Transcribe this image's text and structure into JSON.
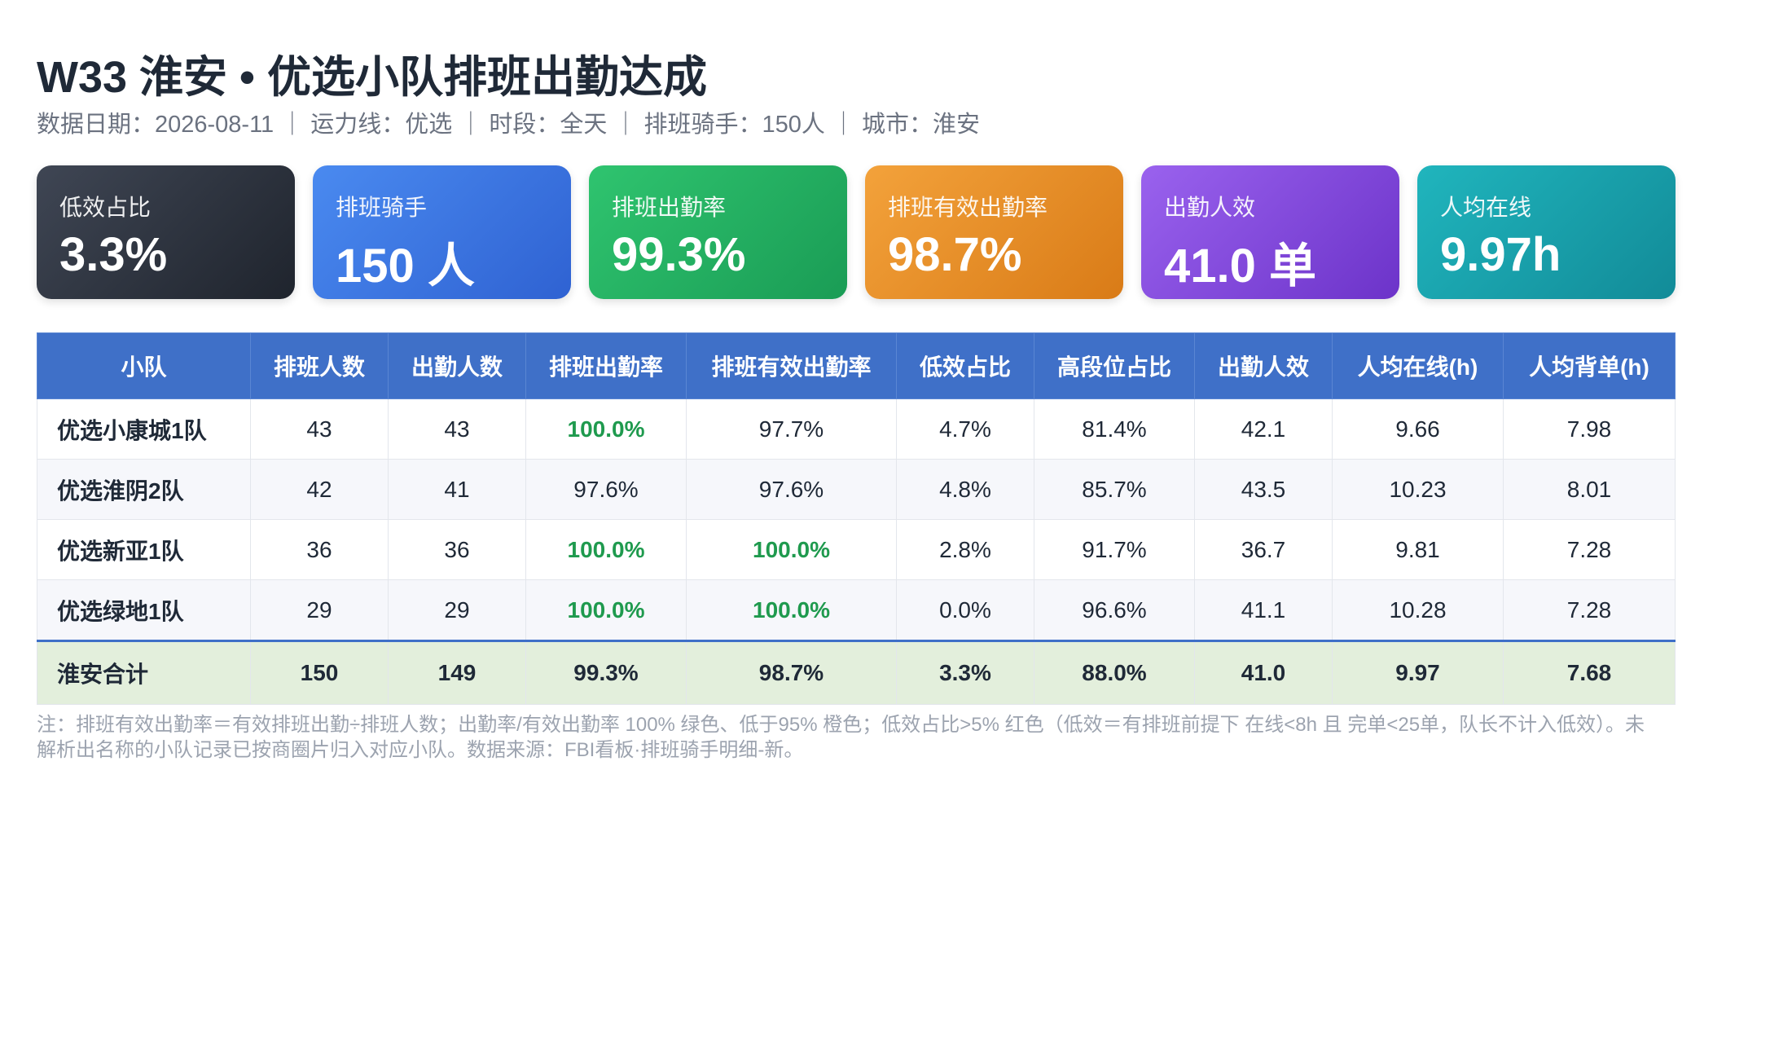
{
  "header": {
    "title": "W33 淮安 • 优选小队排班出勤达成",
    "subtitle": "数据日期：2026-08-11 ｜ 运力线：优选 ｜ 时段：全天 ｜ 排班骑手：150人 ｜ 城市：淮安"
  },
  "cards": [
    {
      "label": "低效占比",
      "value": "3.3%"
    },
    {
      "label": "排班骑手",
      "value": "150 人"
    },
    {
      "label": "排班出勤率",
      "value": "99.3%"
    },
    {
      "label": "排班有效出勤率",
      "value": "98.7%"
    },
    {
      "label": "出勤人效",
      "value": "41.0 单"
    },
    {
      "label": "人均在线",
      "value": "9.97h"
    }
  ],
  "table": {
    "columns": [
      "小队",
      "排班人数",
      "出勤人数",
      "排班出勤率",
      "排班有效出勤率",
      "低效占比",
      "高段位占比",
      "出勤人效",
      "人均在线(h)",
      "人均背单(h)"
    ],
    "rows": [
      [
        "优选小康城1队",
        "43",
        "43",
        "100.0%",
        "97.7%",
        "4.7%",
        "81.4%",
        "42.1",
        "9.66",
        "7.98"
      ],
      [
        "优选淮阴2队",
        "42",
        "41",
        "97.6%",
        "97.6%",
        "4.8%",
        "85.7%",
        "43.5",
        "10.23",
        "8.01"
      ],
      [
        "优选新亚1队",
        "36",
        "36",
        "100.0%",
        "100.0%",
        "2.8%",
        "91.7%",
        "36.7",
        "9.81",
        "7.28"
      ],
      [
        "优选绿地1队",
        "29",
        "29",
        "100.0%",
        "100.0%",
        "0.0%",
        "96.6%",
        "41.1",
        "10.28",
        "7.28"
      ]
    ],
    "total": [
      "淮安合计",
      "150",
      "149",
      "99.3%",
      "98.7%",
      "3.3%",
      "88.0%",
      "41.0",
      "9.97",
      "7.68"
    ]
  },
  "note": "注：排班有效出勤率＝有效排班出勤÷排班人数；出勤率/有效出勤率 100% 绿色、低于95% 橙色；低效占比>5% 红色（低效＝有排班前提下 在线<8h 且 完单<25单，队长不计入低效）。未解析出名称的小队记录已按商圈片归入对应小队。数据来源：FBI看板·排班骑手明细-新。"
}
